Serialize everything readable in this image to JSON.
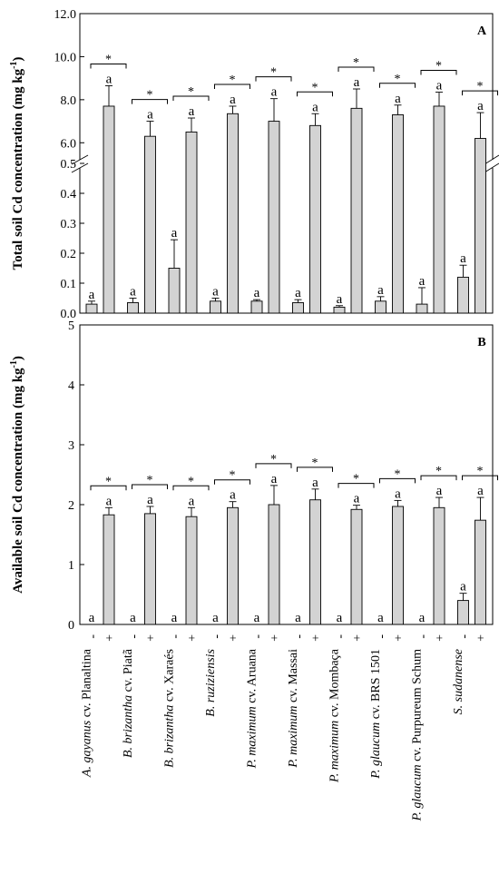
{
  "chart_data": [
    {
      "type": "bar",
      "panel_label": "A",
      "ylabel": "Total soil Cd concentration (mg kg",
      "ylabel_superscript": "-1",
      "ylabel_close": ")",
      "broken_axis": true,
      "ylim_lower": [
        0.0,
        0.5
      ],
      "ylim_upper": [
        5.0,
        12.0
      ],
      "yticks_lower": [
        "0.0",
        "0.1",
        "0.2",
        "0.3",
        "0.4",
        "0.5"
      ],
      "yticks_upper": [
        "6.0",
        "8.0",
        "10.0",
        "12.0"
      ],
      "categories": [
        "A. gayanus cv. Planaltina",
        "B. brizantha cv. Piatã",
        "B. brizantha cv. Xaraés",
        "B. ruziziensis",
        "P. maximum cv. Aruana",
        "P. maximum cv. Massai",
        "P. maximum cv. Mombaça",
        "P. glaucum cv. BRS 1501",
        "P. glaucum cv. Purpureum Schum",
        "S. sudanense"
      ],
      "series": [
        {
          "name": "-",
          "values": [
            0.03,
            0.035,
            0.15,
            0.04,
            0.04,
            0.035,
            0.02,
            0.04,
            0.03,
            0.12
          ],
          "errors": [
            0.01,
            0.015,
            0.095,
            0.01,
            0.005,
            0.01,
            0.005,
            0.015,
            0.055,
            0.04
          ]
        },
        {
          "name": "+",
          "values": [
            7.7,
            6.3,
            6.5,
            7.35,
            7.0,
            6.8,
            7.6,
            7.3,
            7.7,
            6.2
          ],
          "errors": [
            0.95,
            0.7,
            0.65,
            0.35,
            1.05,
            0.55,
            0.9,
            0.45,
            0.65,
            1.2
          ]
        }
      ],
      "bar_labels": "a",
      "significance_marker": "*",
      "bar_color": "#d3d3d3"
    },
    {
      "type": "bar",
      "panel_label": "B",
      "ylabel": "Available soil Cd concentration (mg kg",
      "ylabel_superscript": "-1",
      "ylabel_close": ")",
      "ylim": [
        0,
        5
      ],
      "yticks": [
        "0",
        "1",
        "2",
        "3",
        "4",
        "5"
      ],
      "categories": [
        "A. gayanus cv. Planaltina",
        "B. brizantha cv. Piatã",
        "B. brizantha cv. Xaraés",
        "B. ruziziensis",
        "P. maximum cv. Aruana",
        "P. maximum cv. Massai",
        "P. maximum cv. Mombaça",
        "P. glaucum cv. BRS 1501",
        "P. glaucum cv. Purpureum Schum",
        "S. sudanense"
      ],
      "series": [
        {
          "name": "-",
          "values": [
            0,
            0,
            0,
            0,
            0,
            0,
            0,
            0,
            0,
            0.4
          ],
          "errors": [
            0,
            0,
            0,
            0,
            0,
            0,
            0,
            0,
            0,
            0.12
          ]
        },
        {
          "name": "+",
          "values": [
            1.83,
            1.85,
            1.8,
            1.95,
            2.0,
            2.08,
            1.92,
            1.97,
            1.95,
            1.74
          ],
          "errors": [
            0.12,
            0.12,
            0.15,
            0.1,
            0.32,
            0.18,
            0.07,
            0.1,
            0.17,
            0.38
          ]
        }
      ],
      "bar_labels": "a",
      "significance_marker": "*",
      "bar_color": "#d3d3d3"
    }
  ],
  "x_axis": {
    "tick_labels": [
      "-",
      "+"
    ],
    "categories": [
      {
        "genus": "A. gayanus",
        "cultivar": " cv. Planaltina"
      },
      {
        "genus": "B. brizantha",
        "cultivar": " cv. Piatã"
      },
      {
        "genus": "B. brizantha",
        "cultivar": " cv. Xaraés"
      },
      {
        "genus": "B. ruziziensis",
        "cultivar": ""
      },
      {
        "genus": "P. maximum",
        "cultivar": " cv. Aruana"
      },
      {
        "genus": "P. maximum",
        "cultivar": " cv. Massai"
      },
      {
        "genus": "P. maximum",
        "cultivar": " cv. Mombaça"
      },
      {
        "genus": "P. glaucum",
        "cultivar": " cv. BRS 1501"
      },
      {
        "genus": "P. glaucum",
        "cultivar": " cv. Purpureum Schum"
      },
      {
        "genus": "S. sudanense",
        "cultivar": ""
      }
    ]
  }
}
